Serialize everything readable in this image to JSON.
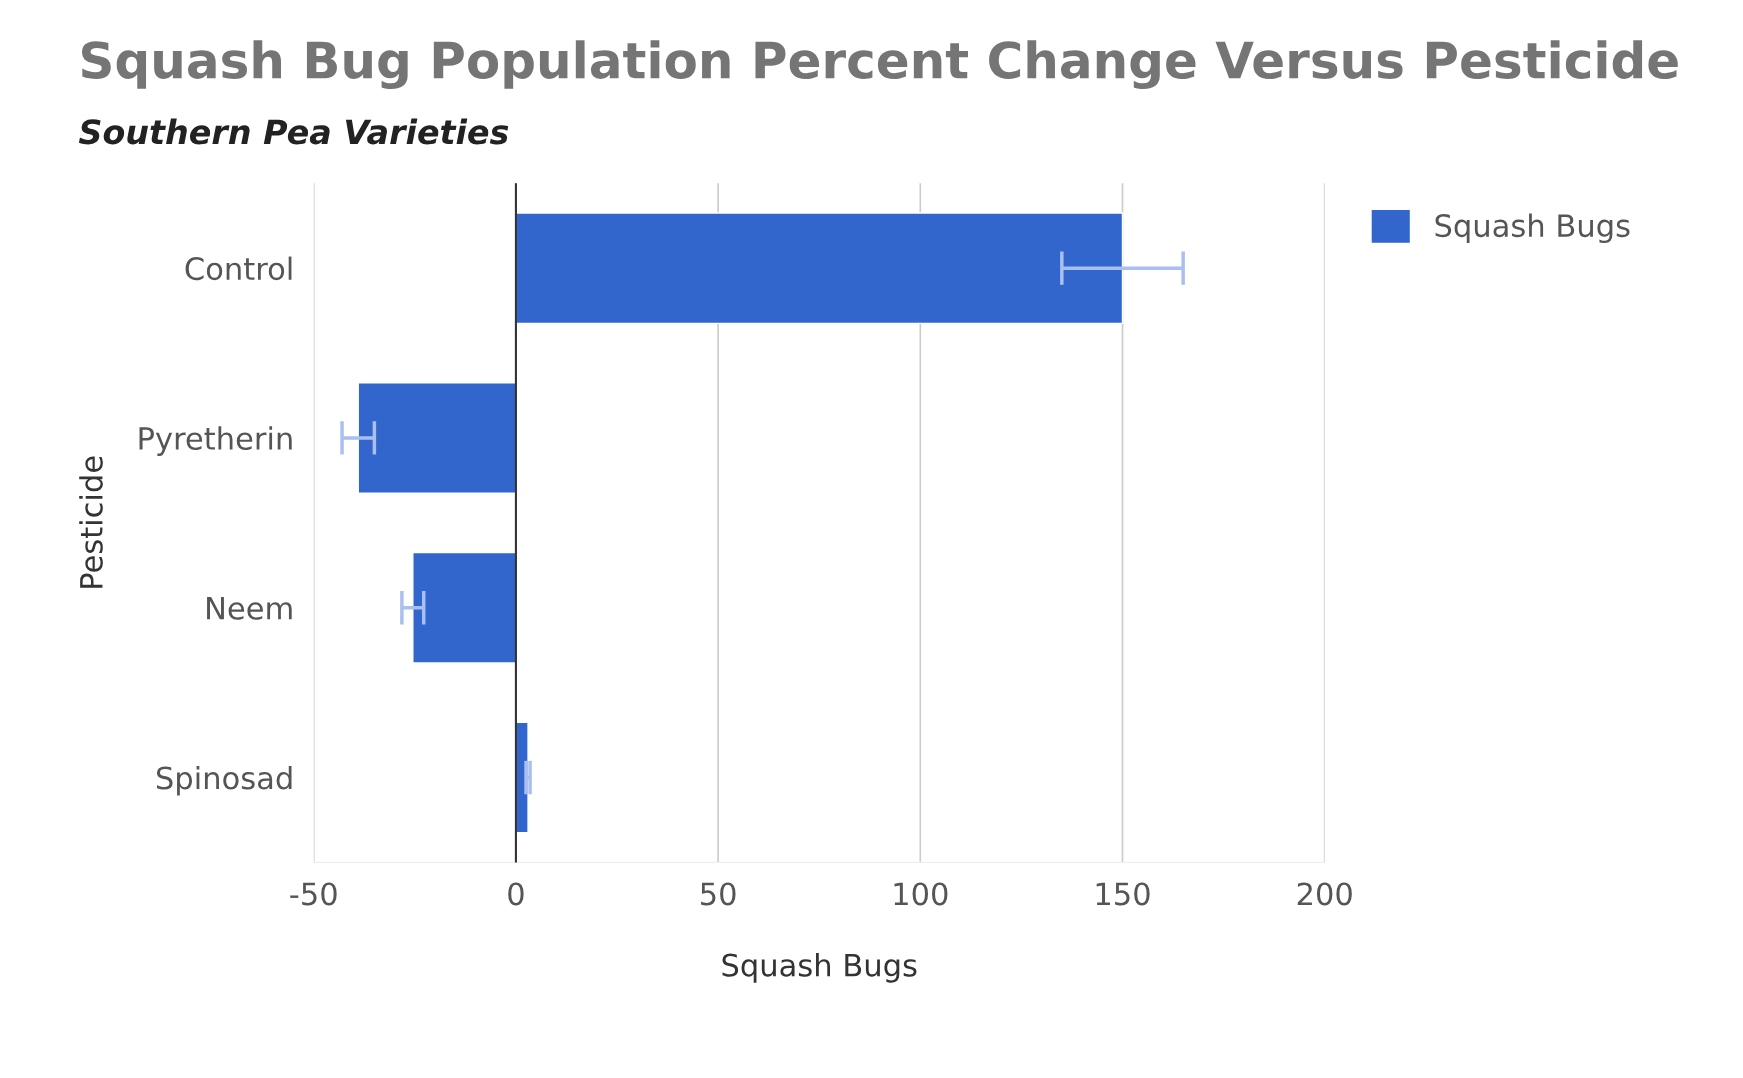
{
  "chart_data": {
    "type": "bar",
    "orientation": "horizontal",
    "title": "Squash Bug Population Percent Change Versus Pesticide",
    "subtitle": "Southern Pea Varieties",
    "xlabel": "Squash Bugs",
    "ylabel": "Pesticide",
    "categories": [
      "Control",
      "Pyretherin",
      "Neem",
      "Spinosad"
    ],
    "series": [
      {
        "name": "Squash Bugs",
        "color": "#3366cc",
        "values": [
          150,
          -39,
          -25.5,
          3
        ],
        "errors": [
          15,
          4,
          2.7,
          0.5
        ]
      }
    ],
    "xlim": [
      -50,
      200
    ],
    "xticks": [
      -50,
      0,
      50,
      100,
      150,
      200
    ],
    "ref_lines": [
      {
        "axis": "x",
        "value": 0,
        "color": "#333333"
      }
    ],
    "grid": "x",
    "legend": "top right"
  }
}
